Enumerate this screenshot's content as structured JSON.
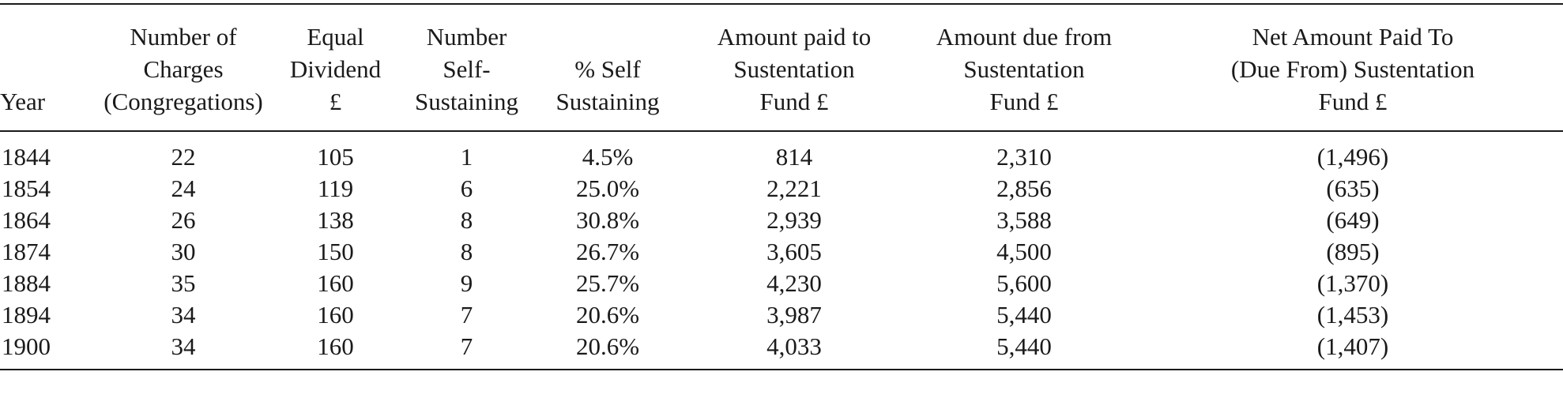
{
  "table": {
    "headers": [
      "Year",
      "Number of\nCharges\n(Congregations)",
      "Equal\nDividend\n£",
      "Number\nSelf-\nSustaining",
      "% Self\nSustaining",
      "Amount paid to\nSustentation\nFund £",
      "Amount due from\nSustentation\nFund £",
      "Net Amount Paid To\n(Due From) Sustentation\nFund £"
    ],
    "rows": [
      [
        "1844",
        "22",
        "105",
        "1",
        "4.5%",
        "814",
        "2,310",
        "(1,496)"
      ],
      [
        "1854",
        "24",
        "119",
        "6",
        "25.0%",
        "2,221",
        "2,856",
        "(635)"
      ],
      [
        "1864",
        "26",
        "138",
        "8",
        "30.8%",
        "2,939",
        "3,588",
        "(649)"
      ],
      [
        "1874",
        "30",
        "150",
        "8",
        "26.7%",
        "3,605",
        "4,500",
        "(895)"
      ],
      [
        "1884",
        "35",
        "160",
        "9",
        "25.7%",
        "4,230",
        "5,600",
        "(1,370)"
      ],
      [
        "1894",
        "34",
        "160",
        "7",
        "20.6%",
        "3,987",
        "5,440",
        "(1,453)"
      ],
      [
        "1900",
        "34",
        "160",
        "7",
        "20.6%",
        "4,033",
        "5,440",
        "(1,407)"
      ]
    ]
  }
}
